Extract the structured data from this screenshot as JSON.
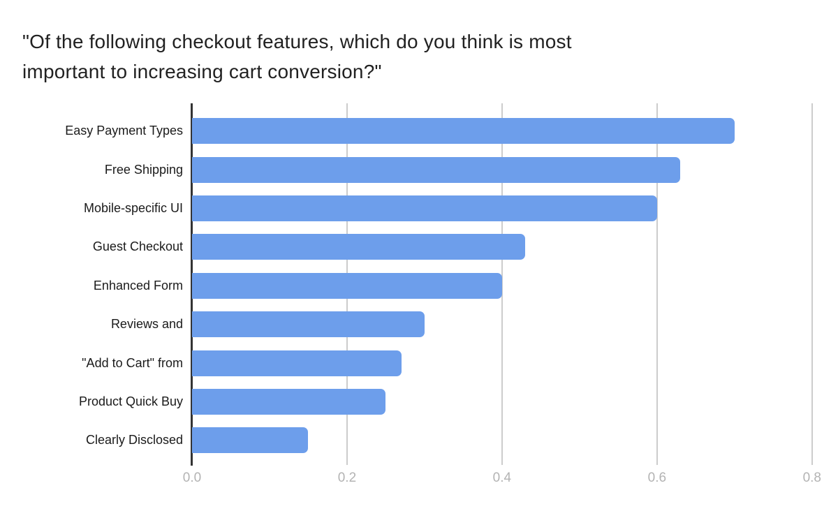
{
  "title": {
    "full": "\"Of the following checkout features, which do you think is most important to increasing cart conversion?\"",
    "line1": "\"Of the following checkout features, which do you think is most",
    "line2": "important to increasing cart conversion?\""
  },
  "chart_data": {
    "type": "bar",
    "orientation": "horizontal",
    "title": "\"Of the following checkout features, which do you think is most important to increasing cart conversion?\"",
    "categories": [
      "Easy Payment Types",
      "Free Shipping",
      "Mobile-specific UI",
      "Guest Checkout",
      "Enhanced Form",
      "Reviews and",
      "\"Add to Cart\" from",
      "Product Quick Buy",
      "Clearly Disclosed"
    ],
    "values": [
      0.7,
      0.63,
      0.6,
      0.43,
      0.4,
      0.3,
      0.27,
      0.25,
      0.15
    ],
    "xlabel": "",
    "ylabel": "",
    "xlim": [
      0,
      0.82
    ],
    "xticks": [
      0.0,
      0.2,
      0.4,
      0.6,
      0.8
    ],
    "xtick_labels": [
      "0.0",
      "0.2",
      "0.4",
      "0.6",
      "0.8"
    ],
    "grid": true,
    "legend": false,
    "colors": {
      "bar": "#6d9eeb",
      "axis_line": "#333333",
      "gridline": "#cccccc",
      "tick_label": "#b3b3b3",
      "category_label": "#1a1a1a",
      "title": "#212121",
      "background": "#ffffff"
    }
  }
}
